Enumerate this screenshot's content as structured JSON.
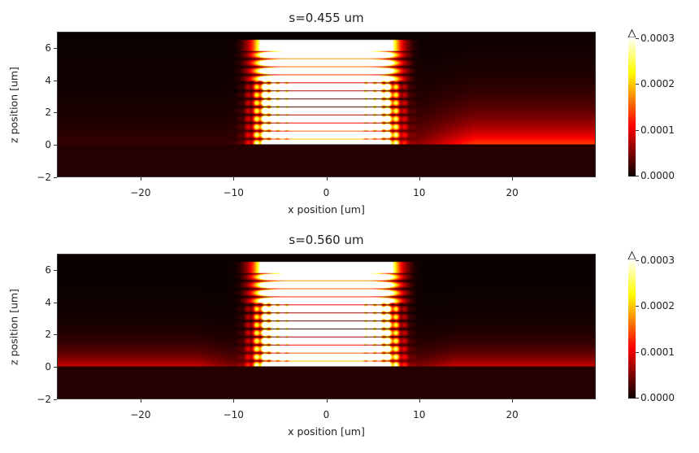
{
  "chart_data": [
    {
      "type": "heatmap",
      "title": "s=0.455 um",
      "xlabel": "x position [um]",
      "ylabel": "z position [um]",
      "xlim": [
        -29,
        29
      ],
      "ylim": [
        -2,
        7
      ],
      "xticks": [
        -20,
        -10,
        0,
        10,
        20
      ],
      "yticks": [
        -2,
        0,
        2,
        4,
        6
      ],
      "xtick_labels": [
        "−20",
        "−10",
        "0",
        "10",
        "20"
      ],
      "ytick_labels": [
        "−2",
        "0",
        "2",
        "4",
        "6"
      ],
      "colormap": "hot",
      "colorbar": {
        "range": [
          0,
          0.0003
        ],
        "extend": "max",
        "ticks": [
          0,
          0.0001,
          0.0002,
          0.0003
        ],
        "tick_labels": [
          "0.0000",
          "0.0001",
          "0.0002",
          "0.0003"
        ]
      },
      "field": {
        "grating_z": [
          0,
          6.5
        ],
        "grating_halfwidth": 9,
        "side_glow": "right"
      }
    },
    {
      "type": "heatmap",
      "title": "s=0.560 um",
      "xlabel": "x position [um]",
      "ylabel": "z position [um]",
      "xlim": [
        -29,
        29
      ],
      "ylim": [
        -2,
        7
      ],
      "xticks": [
        -20,
        -10,
        0,
        10,
        20
      ],
      "yticks": [
        -2,
        0,
        2,
        4,
        6
      ],
      "xtick_labels": [
        "−20",
        "−10",
        "0",
        "10",
        "20"
      ],
      "ytick_labels": [
        "−2",
        "0",
        "2",
        "4",
        "6"
      ],
      "colormap": "hot",
      "colorbar": {
        "range": [
          0,
          0.0003
        ],
        "extend": "max",
        "ticks": [
          0,
          0.0001,
          0.0002,
          0.0003
        ],
        "tick_labels": [
          "0.0000",
          "0.0001",
          "0.0002",
          "0.0003"
        ]
      },
      "field": {
        "grating_z": [
          0,
          6.5
        ],
        "grating_halfwidth": 9,
        "side_glow": "both"
      }
    }
  ]
}
